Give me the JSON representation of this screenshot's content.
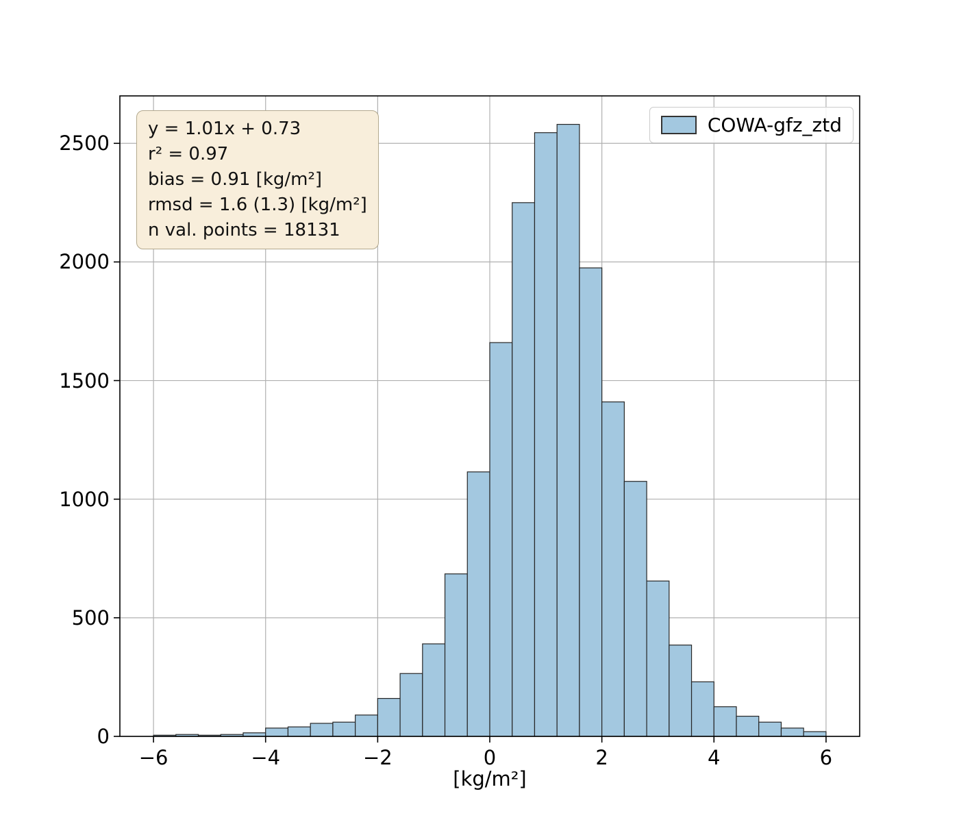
{
  "chart_data": {
    "type": "bar",
    "subtype": "histogram",
    "title": "",
    "xlabel": "[kg/m²]",
    "ylabel": "",
    "legend": {
      "label": "COWA-gfz_ztd",
      "position": "upper right"
    },
    "xlim": [
      -6.6,
      6.6
    ],
    "ylim": [
      0,
      2700
    ],
    "x_ticks": [
      -6,
      -4,
      -2,
      0,
      2,
      4,
      6
    ],
    "x_tick_labels": [
      "−6",
      "−4",
      "−2",
      "0",
      "2",
      "4",
      "6"
    ],
    "y_ticks": [
      0,
      500,
      1000,
      1500,
      2000,
      2500
    ],
    "y_tick_labels": [
      "0",
      "500",
      "1000",
      "1500",
      "2000",
      "2500"
    ],
    "grid": true,
    "histogram": {
      "bin_start": -6.0,
      "bin_width": 0.4,
      "counts": [
        5,
        8,
        5,
        8,
        15,
        35,
        40,
        55,
        60,
        90,
        160,
        265,
        390,
        685,
        1115,
        1660,
        2250,
        2545,
        2580,
        1975,
        1410,
        1075,
        655,
        385,
        230,
        125,
        85,
        60,
        35,
        20
      ]
    },
    "colors": {
      "bar_fill": "#a3c8e0",
      "bar_edge": "#262626",
      "grid": "#b0b0b0",
      "spine": "#000000",
      "annotation_bg": "#f8eedb"
    }
  },
  "annotation": {
    "lines": [
      "y = 1.01x + 0.73",
      "r² = 0.97",
      "bias = 0.91 [kg/m²]",
      "rmsd = 1.6 (1.3) [kg/m²]",
      "n val. points = 18131"
    ]
  }
}
